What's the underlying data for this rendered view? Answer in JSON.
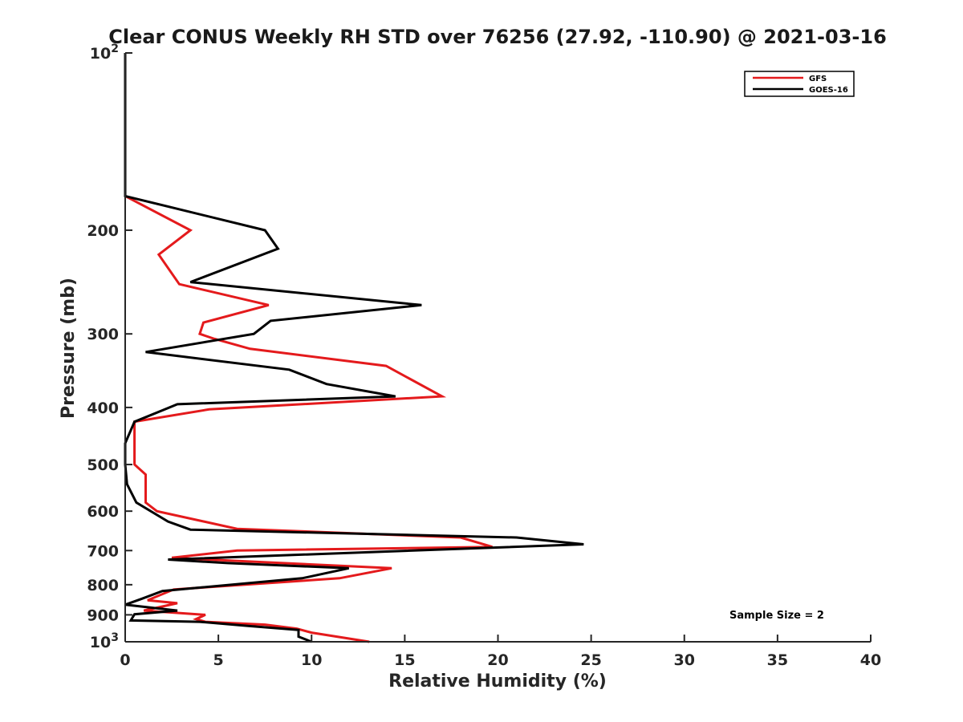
{
  "chart_data": {
    "type": "line",
    "title": "Clear CONUS Weekly RH STD over 76256 (27.92, -110.90) @ 2021-03-16",
    "xlabel": "Relative Humidity (%)",
    "ylabel": "Pressure (mb)",
    "xlim": [
      0,
      40
    ],
    "ylim": [
      100,
      1000
    ],
    "yscale": "log",
    "y_reversed": true,
    "x_ticks": [
      0,
      5,
      10,
      15,
      20,
      25,
      30,
      35,
      40
    ],
    "x_tick_labels": [
      "0",
      "5",
      "10",
      "15",
      "20",
      "25",
      "30",
      "35",
      "40"
    ],
    "y_ticks": [
      200,
      300,
      400,
      500,
      600,
      700,
      800,
      900
    ],
    "y_tick_labels": [
      "200",
      "300",
      "400",
      "500",
      "600",
      "700",
      "800",
      "900"
    ],
    "y_extreme_labels": {
      "top_base": "10",
      "top_exp": "2",
      "bottom_base": "10",
      "bottom_exp": "3"
    },
    "legend_location": "top-right",
    "annotation": "Sample Size = 2",
    "series": [
      {
        "name": "GFS",
        "color": "#e41a1c",
        "points": [
          [
            0,
            100
          ],
          [
            0,
            175
          ],
          [
            3.5,
            200
          ],
          [
            1.8,
            220
          ],
          [
            2.9,
            247
          ],
          [
            7.7,
            268
          ],
          [
            4.2,
            287
          ],
          [
            4.0,
            300
          ],
          [
            4.8,
            306
          ],
          [
            6.7,
            318
          ],
          [
            14.0,
            340
          ],
          [
            17.0,
            383
          ],
          [
            4.5,
            403
          ],
          [
            0.5,
            423
          ],
          [
            0.5,
            500
          ],
          [
            1.1,
            520
          ],
          [
            1.1,
            580
          ],
          [
            1.7,
            600
          ],
          [
            6.0,
            643
          ],
          [
            18.0,
            665
          ],
          [
            19.7,
            690
          ],
          [
            6.0,
            700
          ],
          [
            2.5,
            720
          ],
          [
            14.3,
            750
          ],
          [
            11.5,
            780
          ],
          [
            2.6,
            815
          ],
          [
            1.2,
            850
          ],
          [
            2.8,
            860
          ],
          [
            1.0,
            885
          ],
          [
            4.3,
            900
          ],
          [
            3.8,
            915
          ],
          [
            4.3,
            925
          ],
          [
            7.5,
            935
          ],
          [
            9.2,
            950
          ],
          [
            10.0,
            965
          ],
          [
            13.1,
            1000
          ]
        ]
      },
      {
        "name": "GOES-16",
        "color": "#000000",
        "points": [
          [
            0,
            100
          ],
          [
            0,
            175
          ],
          [
            7.5,
            200
          ],
          [
            8.2,
            215
          ],
          [
            3.5,
            245
          ],
          [
            15.9,
            268
          ],
          [
            7.8,
            285
          ],
          [
            6.9,
            300
          ],
          [
            1.1,
            322
          ],
          [
            8.8,
            345
          ],
          [
            10.8,
            365
          ],
          [
            14.5,
            383
          ],
          [
            2.8,
            395
          ],
          [
            0.5,
            423
          ],
          [
            0,
            460
          ],
          [
            0,
            500
          ],
          [
            0.1,
            540
          ],
          [
            0.6,
            580
          ],
          [
            2.3,
            625
          ],
          [
            3.5,
            645
          ],
          [
            21.0,
            665
          ],
          [
            24.6,
            683
          ],
          [
            2.3,
            725
          ],
          [
            5.5,
            735
          ],
          [
            12.0,
            750
          ],
          [
            9.5,
            780
          ],
          [
            2.0,
            820
          ],
          [
            0.9,
            845
          ],
          [
            0,
            865
          ],
          [
            2.8,
            885
          ],
          [
            0.5,
            898
          ],
          [
            0.3,
            920
          ],
          [
            4.0,
            925
          ],
          [
            6.6,
            940
          ],
          [
            9.3,
            955
          ],
          [
            9.3,
            980
          ],
          [
            10.0,
            1000
          ]
        ]
      }
    ]
  }
}
